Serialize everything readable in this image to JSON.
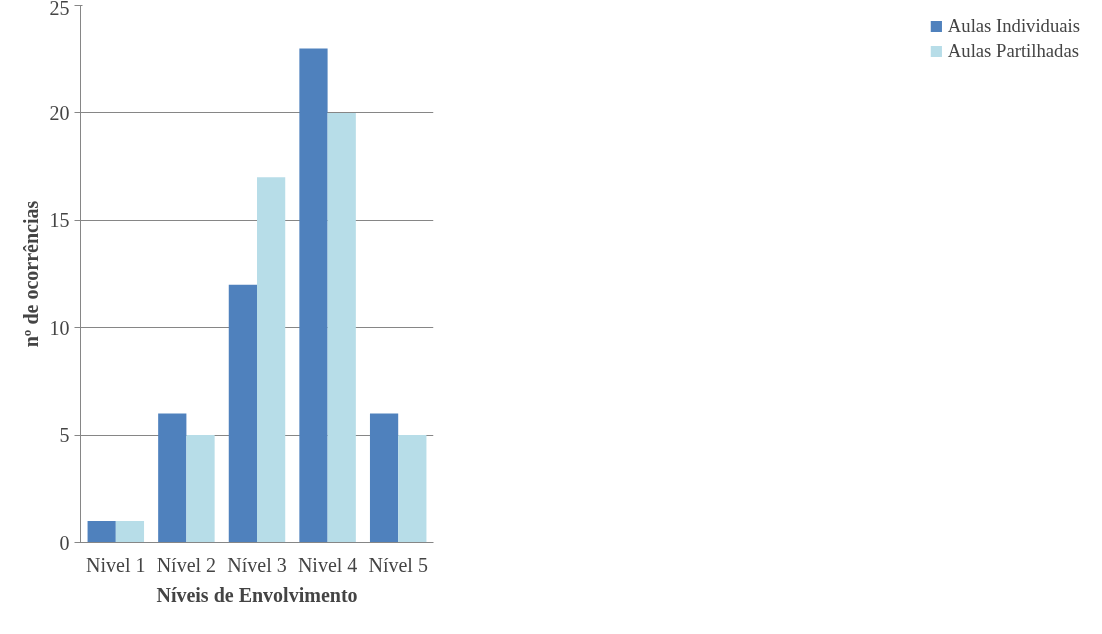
{
  "chart_data": {
    "type": "bar",
    "xlabel": "Níveis de Envolvimento",
    "ylabel": "nº de ocorrências",
    "categories": [
      "Nivel 1",
      "Nível 2",
      "Nível 3",
      "Nivel 4",
      "Nível 5"
    ],
    "series": [
      {
        "name": "Aulas Individuais",
        "color": "#4f81bd",
        "values": [
          1,
          6,
          12,
          23,
          6
        ]
      },
      {
        "name": "Aulas Partilhadas",
        "color": "#b7dde8",
        "values": [
          1,
          5,
          17,
          20,
          5
        ]
      }
    ],
    "ylim": [
      0,
      25
    ],
    "yticks": [
      0,
      5,
      10,
      15,
      20,
      25
    ],
    "grid": "y",
    "legend": "right"
  }
}
